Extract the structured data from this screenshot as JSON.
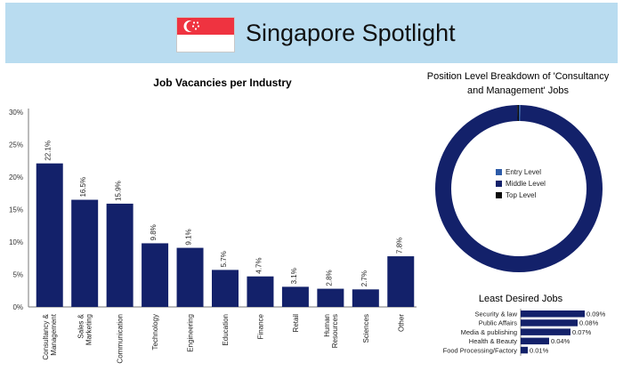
{
  "banner": {
    "title": "Singapore Spotlight",
    "colors": {
      "background": "#b9dcf0",
      "flag_red": "#ef3340",
      "flag_white": "#ffffff"
    }
  },
  "chart_data": [
    {
      "type": "bar",
      "title": "Job Vacancies per Industry",
      "categories": [
        "Consultancy & Management",
        "Sales & Marketing",
        "Communication",
        "Technology",
        "Engineering",
        "Education",
        "Finance",
        "Retail",
        "Human Resources",
        "Sciences",
        "Other"
      ],
      "category_lines": [
        [
          "Consultancy &",
          "Management"
        ],
        [
          "Sales &",
          "Marketing"
        ],
        [
          "Communication"
        ],
        [
          "Technology"
        ],
        [
          "Engineering"
        ],
        [
          "Education"
        ],
        [
          "Finance"
        ],
        [
          "Retail"
        ],
        [
          "Human",
          "Resources"
        ],
        [
          "Sciences"
        ],
        [
          "Other"
        ]
      ],
      "values": [
        22.1,
        16.5,
        15.9,
        9.8,
        9.1,
        5.7,
        4.7,
        3.1,
        2.8,
        2.7,
        7.8
      ],
      "data_labels": [
        "22.1%",
        "16.5%",
        "15.9%",
        "9.8%",
        "9.1%",
        "5.7%",
        "4.7%",
        "3.1%",
        "2.8%",
        "2.7%",
        "7.8%"
      ],
      "ylim": [
        0,
        30
      ],
      "yticks": [
        0,
        5,
        10,
        15,
        20,
        25,
        30
      ],
      "ytick_labels": [
        "0%",
        "5%",
        "10%",
        "15%",
        "20%",
        "25%",
        "30%"
      ],
      "grid": false,
      "color": "#13216a"
    },
    {
      "type": "pie",
      "title": "Position Level Breakdown of 'Consultancy and Management' Jobs",
      "categories": [
        "Entry Level",
        "Middle Level",
        "Top Level"
      ],
      "values": [
        0.3,
        99.4,
        0.3
      ],
      "colors": [
        "#2d5ba8",
        "#13216a",
        "#0b0b0b"
      ],
      "legend_position": "center"
    },
    {
      "type": "bar",
      "orientation": "horizontal",
      "title": "Least Desired Jobs",
      "categories": [
        "Security & law",
        "Public Affairs",
        "Media & publishing",
        "Health & Beauty",
        "Food Processing/Factory"
      ],
      "values": [
        0.09,
        0.08,
        0.07,
        0.04,
        0.01
      ],
      "data_labels": [
        "0.09%",
        "0.08%",
        "0.07%",
        "0.04%",
        "0.01%"
      ],
      "color": "#13216a"
    }
  ]
}
